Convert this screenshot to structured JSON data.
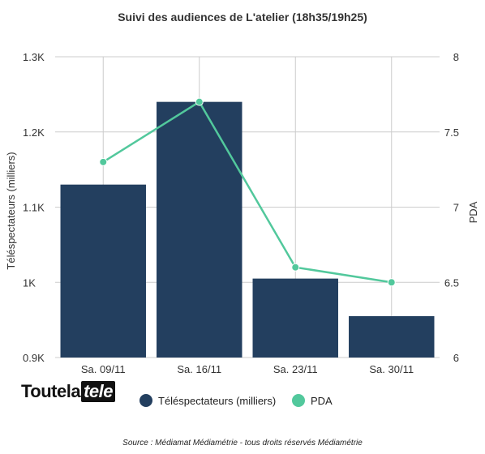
{
  "logo": {
    "part_a": "Toutela",
    "part_b": "tele"
  },
  "source": "Source : Médiamat Médiamétrie - tous droits réservés Médiamétrie",
  "colors": {
    "bars": "#233f5f",
    "line": "#52c89c",
    "grid": "#cccccc",
    "text": "#333333"
  },
  "chart_data": {
    "type": "bar",
    "title": "Suivi des audiences de L'atelier (18h35/19h25)",
    "categories": [
      "Sa. 09/11",
      "Sa. 16/11",
      "Sa. 23/11",
      "Sa. 30/11"
    ],
    "series": [
      {
        "name": "Téléspectateurs (milliers)",
        "kind": "bar",
        "axis": "left",
        "color": "#233f5f",
        "values": [
          1130,
          1240,
          1005,
          955
        ]
      },
      {
        "name": "PDA",
        "kind": "line",
        "axis": "right",
        "color": "#52c89c",
        "values": [
          7.3,
          7.7,
          6.6,
          6.5
        ]
      }
    ],
    "ylabel": "Téléspectateurs (milliers)",
    "ylabel_right": "PDA",
    "ylim": [
      900,
      1300
    ],
    "ylim_right": [
      6,
      8
    ],
    "yticks": [
      {
        "value": 900,
        "label": "0.9K"
      },
      {
        "value": 1000,
        "label": "1K"
      },
      {
        "value": 1100,
        "label": "1.1K"
      },
      {
        "value": 1200,
        "label": "1.2K"
      },
      {
        "value": 1300,
        "label": "1.3K"
      }
    ],
    "yticks_right": [
      {
        "value": 6,
        "label": "6"
      },
      {
        "value": 6.5,
        "label": "6.5"
      },
      {
        "value": 7,
        "label": "7"
      },
      {
        "value": 7.5,
        "label": "7.5"
      },
      {
        "value": 8,
        "label": "8"
      }
    ],
    "grid": true,
    "legend_position": "bottom"
  }
}
